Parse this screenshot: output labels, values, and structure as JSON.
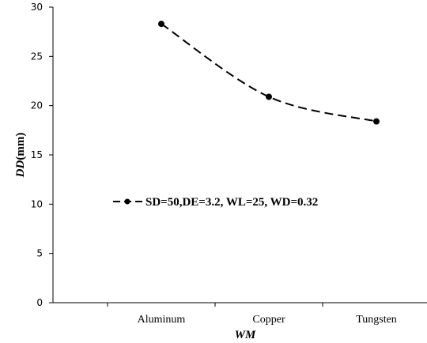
{
  "chart_data": {
    "type": "line",
    "categories": [
      "Aluminum",
      "Copper",
      "Tungsten"
    ],
    "series": [
      {
        "name": "SD=50,DE=3.2, WL=25, WD=0.32",
        "values": [
          28.3,
          20.9,
          18.4
        ],
        "style": "dashed",
        "marker": "circle",
        "color": "#000000"
      }
    ],
    "ylim": [
      0,
      30
    ],
    "yticks": [
      "0",
      "5",
      "10",
      "15",
      "20",
      "25",
      "30"
    ],
    "xlabel_italic": "WM",
    "ylabel_italic": "DD",
    "ylabel_unit": "(mm)",
    "legend_position": "center",
    "grid": false
  }
}
